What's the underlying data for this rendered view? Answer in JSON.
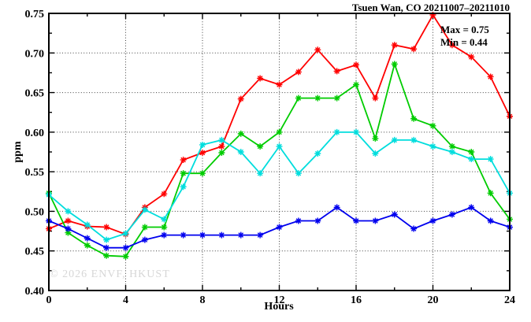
{
  "header": {
    "title": "Tsuen Wan, CO 20211007–20211010"
  },
  "annotation": {
    "max_label": "Max = 0.75",
    "min_label": "Min = 0.44"
  },
  "watermark": "© 2026 ENVF, HKUST",
  "axes": {
    "y_label": "ppm",
    "x_label": "Hours"
  },
  "chart_data": {
    "type": "line",
    "title": "Tsuen Wan, CO 20211007–20211010",
    "xlabel": "Hours",
    "ylabel": "ppm",
    "xlim": [
      0,
      24
    ],
    "ylim": [
      0.4,
      0.75
    ],
    "grid": "dotted-at-major-ticks",
    "legend_position": "none",
    "marker": "asterisk",
    "annotations": {
      "max": 0.75,
      "min": 0.44
    },
    "x_major_ticks": [
      0,
      4,
      8,
      12,
      16,
      20,
      24
    ],
    "x_tick_labels": [
      "0",
      "4",
      "8",
      "12",
      "16",
      "20",
      "24"
    ],
    "x_minor_ticks": [
      2,
      6,
      10,
      14,
      18,
      22
    ],
    "x_gridlines": [
      4,
      8,
      12,
      16,
      20
    ],
    "y_major_ticks": [
      0.4,
      0.45,
      0.5,
      0.55,
      0.6,
      0.65,
      0.7,
      0.75
    ],
    "y_tick_labels": [
      "0.40",
      "0.45",
      "0.50",
      "0.55",
      "0.60",
      "0.65",
      "0.70",
      "0.75"
    ],
    "y_minor_ticks": [
      0.425,
      0.475,
      0.525,
      0.575,
      0.625,
      0.675,
      0.725
    ],
    "y_gridlines": [
      0.45,
      0.5,
      0.55,
      0.6,
      0.65,
      0.7
    ],
    "x": [
      0,
      1,
      2,
      3,
      4,
      5,
      6,
      7,
      8,
      9,
      10,
      11,
      12,
      13,
      14,
      15,
      16,
      17,
      18,
      19,
      20,
      21,
      22,
      23,
      24
    ],
    "series": [
      {
        "name": "series-red",
        "color": "#ff0000",
        "values": [
          0.478,
          0.488,
          0.481,
          0.48,
          0.471,
          0.505,
          0.522,
          0.565,
          0.574,
          0.582,
          0.642,
          0.668,
          0.66,
          0.676,
          0.704,
          0.677,
          0.685,
          0.643,
          0.71,
          0.705,
          0.748,
          0.71,
          0.695,
          0.67,
          0.62
        ]
      },
      {
        "name": "series-green",
        "color": "#00cc00",
        "values": [
          0.523,
          0.473,
          0.457,
          0.444,
          0.443,
          0.48,
          0.48,
          0.548,
          0.548,
          0.574,
          0.598,
          0.582,
          0.6,
          0.643,
          0.643,
          0.643,
          0.66,
          0.592,
          0.686,
          0.617,
          0.608,
          0.582,
          0.575,
          0.523,
          0.49
        ]
      },
      {
        "name": "series-cyan",
        "color": "#00dddd",
        "values": [
          0.521,
          0.5,
          0.483,
          0.464,
          0.472,
          0.502,
          0.49,
          0.531,
          0.584,
          0.59,
          0.575,
          0.548,
          0.582,
          0.548,
          0.573,
          0.6,
          0.6,
          0.573,
          0.59,
          0.59,
          0.582,
          0.575,
          0.566,
          0.566,
          0.523
        ]
      },
      {
        "name": "series-blue",
        "color": "#0000ee",
        "values": [
          0.488,
          0.478,
          0.466,
          0.454,
          0.454,
          0.464,
          0.47,
          0.47,
          0.47,
          0.47,
          0.47,
          0.47,
          0.48,
          0.488,
          0.488,
          0.505,
          0.488,
          0.488,
          0.496,
          0.478,
          0.488,
          0.496,
          0.505,
          0.488,
          0.48
        ]
      }
    ]
  }
}
